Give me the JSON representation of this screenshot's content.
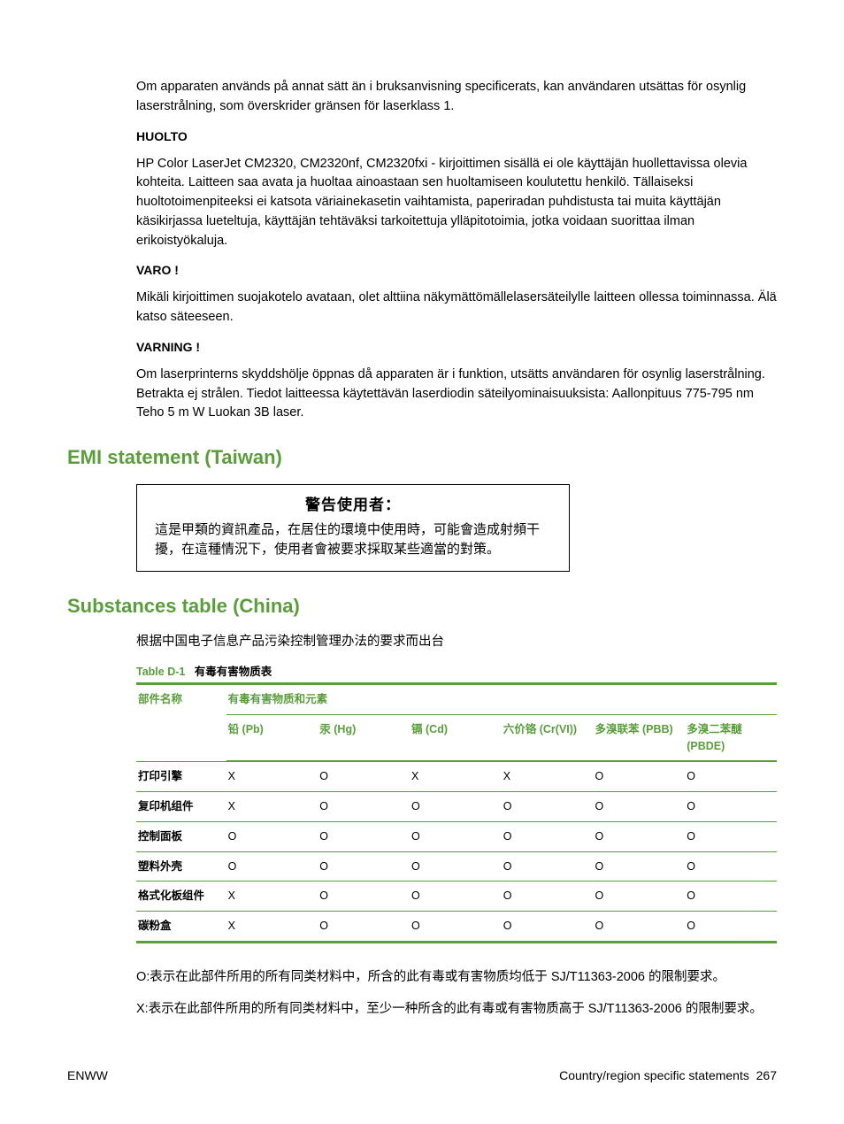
{
  "intro_para": "Om apparaten används på annat sätt än i bruksanvisning specificerats, kan användaren utsättas för osynlig laserstrålning, som överskrider gränsen för laserklass 1.",
  "huolto": {
    "heading": "HUOLTO",
    "body": "HP Color LaserJet CM2320, CM2320nf, CM2320fxi - kirjoittimen sisällä ei ole käyttäjän huollettavissa olevia kohteita. Laitteen saa avata ja huoltaa ainoastaan sen huoltamiseen koulutettu henkilö. Tällaiseksi huoltotoimenpiteeksi ei katsota väriainekasetin vaihtamista, paperiradan puhdistusta tai muita käyttäjän käsikirjassa lueteltuja, käyttäjän tehtäväksi tarkoitettuja ylläpitotoimia, jotka voidaan suorittaa ilman erikoistyökaluja."
  },
  "varo": {
    "heading": "VARO !",
    "body": "Mikäli kirjoittimen suojakotelo avataan, olet alttiina näkymättömällelasersäteilylle laitteen ollessa toiminnassa. Älä katso säteeseen."
  },
  "varning": {
    "heading": "VARNING !",
    "body": "Om laserprinterns skyddshölje öppnas då apparaten är i funktion, utsätts användaren för osynlig laserstrålning. Betrakta ej strålen. Tiedot laitteessa käytettävän laserdiodin säteilyominaisuuksista: Aallonpituus 775-795 nm Teho 5 m W Luokan 3B laser."
  },
  "emi": {
    "heading": "EMI statement (Taiwan)",
    "box_title": "警告使用者：",
    "box_body": "這是甲類的資訊產品，在居住的環境中使用時，可能會造成射頻干擾，在這種情況下，使用者會被要求採取某些適當的對策。"
  },
  "substances": {
    "heading": "Substances table (China)",
    "intro": "根据中国电子信息产品污染控制管理办法的要求而出台",
    "table_caption_num": "Table D-1",
    "table_caption_text": "有毒有害物质表",
    "col_part": "部件名称",
    "col_group": "有毒有害物质和元素",
    "cols": [
      "铅 (Pb)",
      "汞 (Hg)",
      "镉 (Cd)",
      "六价铬 (Cr(VI))",
      "多溴联苯 (PBB)",
      "多溴二苯醚 (PBDE)"
    ],
    "rows": [
      {
        "name": "打印引擎",
        "vals": [
          "X",
          "O",
          "X",
          "X",
          "O",
          "O"
        ]
      },
      {
        "name": "复印机组件",
        "vals": [
          "X",
          "O",
          "O",
          "O",
          "O",
          "O"
        ]
      },
      {
        "name": "控制面板",
        "vals": [
          "O",
          "O",
          "O",
          "O",
          "O",
          "O"
        ]
      },
      {
        "name": "塑料外壳",
        "vals": [
          "O",
          "O",
          "O",
          "O",
          "O",
          "O"
        ]
      },
      {
        "name": "格式化板组件",
        "vals": [
          "X",
          "O",
          "O",
          "O",
          "O",
          "O"
        ]
      },
      {
        "name": "碳粉盒",
        "vals": [
          "X",
          "O",
          "O",
          "O",
          "O",
          "O"
        ]
      }
    ],
    "note_o": "O:表示在此部件所用的所有同类材料中，所含的此有毒或有害物质均低于 SJ/T11363-2006 的限制要求。",
    "note_x": "X:表示在此部件所用的所有同类材料中，至少一种所含的此有毒或有害物质高于 SJ/T11363-2006 的限制要求。"
  },
  "footer": {
    "left": "ENWW",
    "right_text": "Country/region specific statements",
    "page_num": "267"
  }
}
